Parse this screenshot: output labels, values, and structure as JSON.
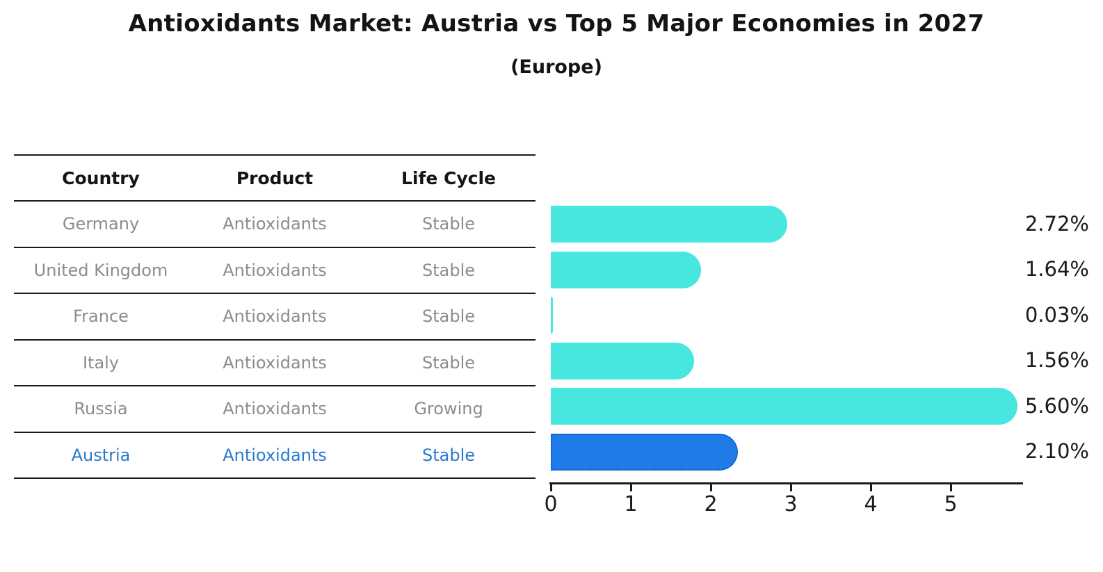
{
  "title": "Antioxidants Market: Austria vs Top 5 Major Economies in 2027",
  "subtitle": "(Europe)",
  "table": {
    "headers": [
      "Country",
      "Product",
      "Life Cycle"
    ],
    "rows": [
      {
        "country": "Germany",
        "product": "Antioxidants",
        "life_cycle": "Stable",
        "highlight": false
      },
      {
        "country": "United Kingdom",
        "product": "Antioxidants",
        "life_cycle": "Stable",
        "highlight": false
      },
      {
        "country": "France",
        "product": "Antioxidants",
        "life_cycle": "Stable",
        "highlight": false
      },
      {
        "country": "Italy",
        "product": "Antioxidants",
        "life_cycle": "Stable",
        "highlight": false
      },
      {
        "country": "Russia",
        "product": "Antioxidants",
        "life_cycle": "Growing",
        "highlight": false
      },
      {
        "country": "Austria",
        "product": "Antioxidants",
        "life_cycle": "Stable",
        "highlight": true
      }
    ]
  },
  "chart_data": {
    "type": "bar",
    "orientation": "horizontal",
    "title": "Antioxidants Market: Austria vs Top 5 Major Economies in 2027",
    "subtitle": "(Europe)",
    "categories": [
      "Germany",
      "United Kingdom",
      "France",
      "Italy",
      "Russia",
      "Austria"
    ],
    "values": [
      2.72,
      1.64,
      0.03,
      1.56,
      5.6,
      2.1
    ],
    "value_labels": [
      "2.72%",
      "1.64%",
      "0.03%",
      "1.56%",
      "5.60%",
      "2.10%"
    ],
    "x_ticks": [
      "0",
      "1",
      "2",
      "3",
      "4",
      "5"
    ],
    "xlim": [
      0,
      5.9
    ],
    "grid": false,
    "legend": "none",
    "highlight_index": 5
  },
  "colors": {
    "bar": "#47e6de",
    "highlight_bar": "#1e7be8",
    "highlight_border": "#0c56c8",
    "highlight_text": "#2878ce",
    "row_text": "#8c8c8c",
    "header_text": "#141414",
    "axis": "#1a1a1a"
  }
}
